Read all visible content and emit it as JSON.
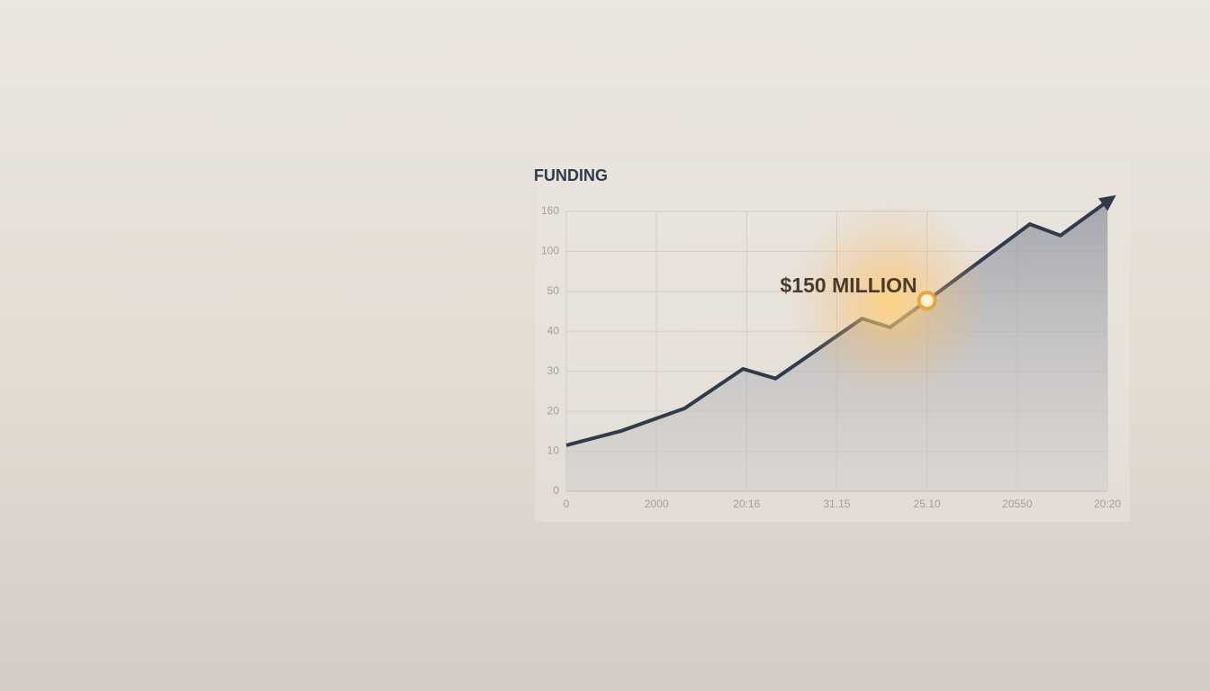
{
  "chart_data": {
    "type": "line",
    "title": "FUNDING",
    "annotation": "$150 MILLION",
    "x": [
      0,
      0.61,
      1.31,
      1.96,
      2.32,
      3.28,
      3.59,
      4.0,
      5.14,
      5.48,
      6.0
    ],
    "series": [
      {
        "color": "#2f3a4c",
        "values": [
          11.5,
          15.1,
          20.7,
          30.6,
          28.2,
          43.2,
          41,
          47.7,
          141,
          124,
          175
        ]
      }
    ],
    "xlim": [
      0,
      6
    ],
    "xticks": [
      0,
      {
        "value": 1,
        "label": "2000"
      },
      {
        "value": 2,
        "label": "20:16"
      },
      {
        "value": 3,
        "label": "31.15"
      },
      {
        "value": 4,
        "label": "25.10"
      },
      {
        "value": 5,
        "label": "20550"
      },
      {
        "value": 6,
        "label": "20:20"
      }
    ],
    "ylim": [
      0,
      160
    ],
    "yticks": [
      0,
      10,
      20,
      30,
      40,
      50,
      100,
      160
    ],
    "grid": true
  }
}
